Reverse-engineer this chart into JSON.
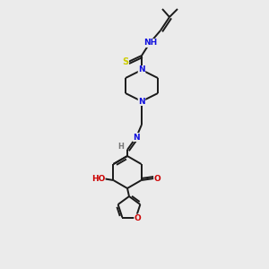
{
  "background_color": "#ebebeb",
  "bond_color": "#1a1a1a",
  "bond_width": 1.4,
  "atom_colors": {
    "N": "#1010dd",
    "O": "#cc0000",
    "S": "#cccc00",
    "H": "#777777",
    "C": "#1a1a1a"
  },
  "font_size_atom": 6.5,
  "fig_width": 3.0,
  "fig_height": 3.0,
  "dpi": 100
}
